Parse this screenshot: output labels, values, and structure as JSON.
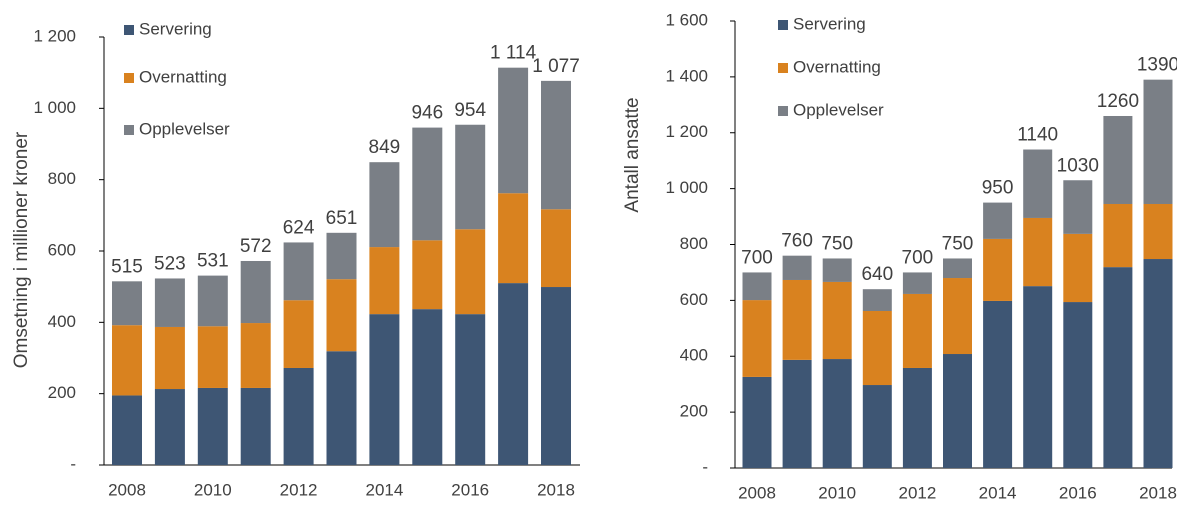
{
  "chart_data": [
    {
      "type": "bar",
      "stacked": true,
      "y_label": "Omsetning i millioner kroner",
      "categories": [
        "2008",
        null,
        "2010",
        null,
        "2012",
        null,
        "2014",
        null,
        "2016",
        null,
        "2018"
      ],
      "series": [
        {
          "name": "Servering",
          "color": "#3e5674",
          "values": [
            195,
            213,
            216,
            216,
            272,
            319,
            423,
            437,
            423,
            510,
            499
          ]
        },
        {
          "name": "Overnatting",
          "color": "#d9821f",
          "values": [
            197,
            174,
            173,
            182,
            190,
            202,
            188,
            193,
            238,
            252,
            218
          ]
        },
        {
          "name": "Opplevelser",
          "color": "#7a7f86",
          "values": [
            123,
            136,
            142,
            174,
            162,
            130,
            238,
            316,
            293,
            352,
            360
          ]
        }
      ],
      "totals": [
        515,
        523,
        531,
        572,
        624,
        651,
        849,
        946,
        954,
        1114,
        1077
      ],
      "total_labels": [
        "515",
        "523",
        "531",
        "572",
        "624",
        "651",
        "849",
        "946",
        "954",
        "1 114",
        "1 077"
      ],
      "ylim": [
        0,
        1200
      ],
      "yticks": [
        {
          "value": 0,
          "label": "-"
        },
        200,
        400,
        600,
        800,
        {
          "value": 1000,
          "label": "1 000"
        },
        {
          "value": 1200,
          "label": "1 200"
        }
      ],
      "legend": "top-left"
    },
    {
      "type": "bar",
      "stacked": true,
      "y_label": "Antall ansatte",
      "categories": [
        "2008",
        null,
        "2010",
        null,
        "2012",
        null,
        "2014",
        null,
        "2016",
        null,
        "2018"
      ],
      "series": [
        {
          "name": "Servering",
          "color": "#3e5674",
          "values": [
            326,
            387,
            390,
            297,
            358,
            408,
            598,
            651,
            594,
            719,
            748
          ]
        },
        {
          "name": "Overnatting",
          "color": "#d9821f",
          "values": [
            275,
            286,
            276,
            265,
            265,
            272,
            222,
            244,
            244,
            226,
            197
          ]
        },
        {
          "name": "Opplevelser",
          "color": "#7a7f86",
          "values": [
            99,
            87,
            84,
            78,
            77,
            70,
            130,
            245,
            192,
            315,
            445
          ]
        }
      ],
      "totals": [
        700,
        760,
        750,
        640,
        700,
        750,
        950,
        1140,
        1030,
        1260,
        1390
      ],
      "ylim": [
        0,
        1600
      ],
      "yticks": [
        {
          "value": 0,
          "label": "-"
        },
        200,
        400,
        600,
        800,
        {
          "value": 1000,
          "label": "1 000"
        },
        {
          "value": 1200,
          "label": "1 200"
        },
        {
          "value": 1400,
          "label": "1 400"
        },
        {
          "value": 1600,
          "label": "1 600"
        }
      ],
      "legend": "top-left"
    }
  ]
}
